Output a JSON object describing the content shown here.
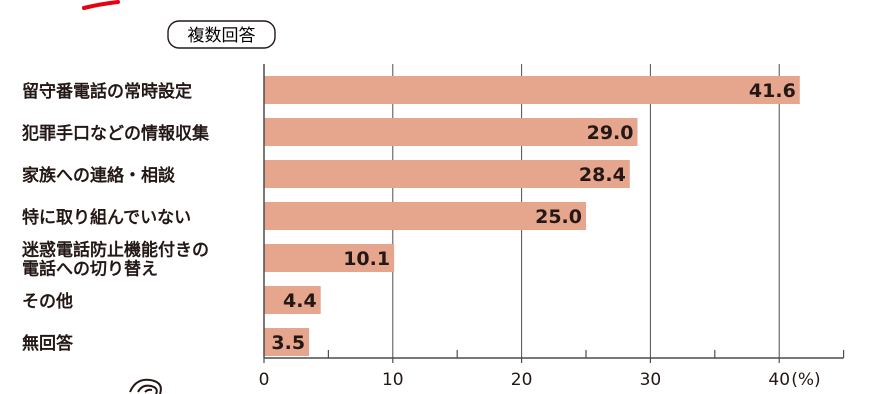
{
  "badge": "複数回答",
  "chart_data": {
    "type": "bar",
    "orientation": "horizontal",
    "title": "",
    "xlabel": "",
    "ylabel": "",
    "unit_label": "(%)",
    "categories": [
      [
        "留守番電話の常時設定"
      ],
      [
        "犯罪手口などの情報収集"
      ],
      [
        "家族への連絡・相談"
      ],
      [
        "特に取り組んでいない"
      ],
      [
        "迷惑電話防止機能付きの",
        "電話への切り替え"
      ],
      [
        "その他"
      ],
      [
        "無回答"
      ]
    ],
    "values": [
      41.6,
      29.0,
      28.4,
      25.0,
      10.1,
      4.4,
      3.5
    ],
    "value_labels": [
      "41.6",
      "29.0",
      "28.4",
      "25.0",
      "10.1",
      "4.4",
      "3.5"
    ],
    "xlim": [
      0,
      45
    ],
    "ticks": [
      0,
      10,
      20,
      30,
      40
    ],
    "tick_labels": [
      "0",
      "10",
      "20",
      "30",
      "40"
    ],
    "minor_ticks": [
      5,
      15,
      25,
      35,
      45
    ],
    "grid": true,
    "colors": {
      "bar": "#e6a68d",
      "axis": "#4d4d4d",
      "text": "#231815",
      "accent": "#e60012"
    }
  }
}
